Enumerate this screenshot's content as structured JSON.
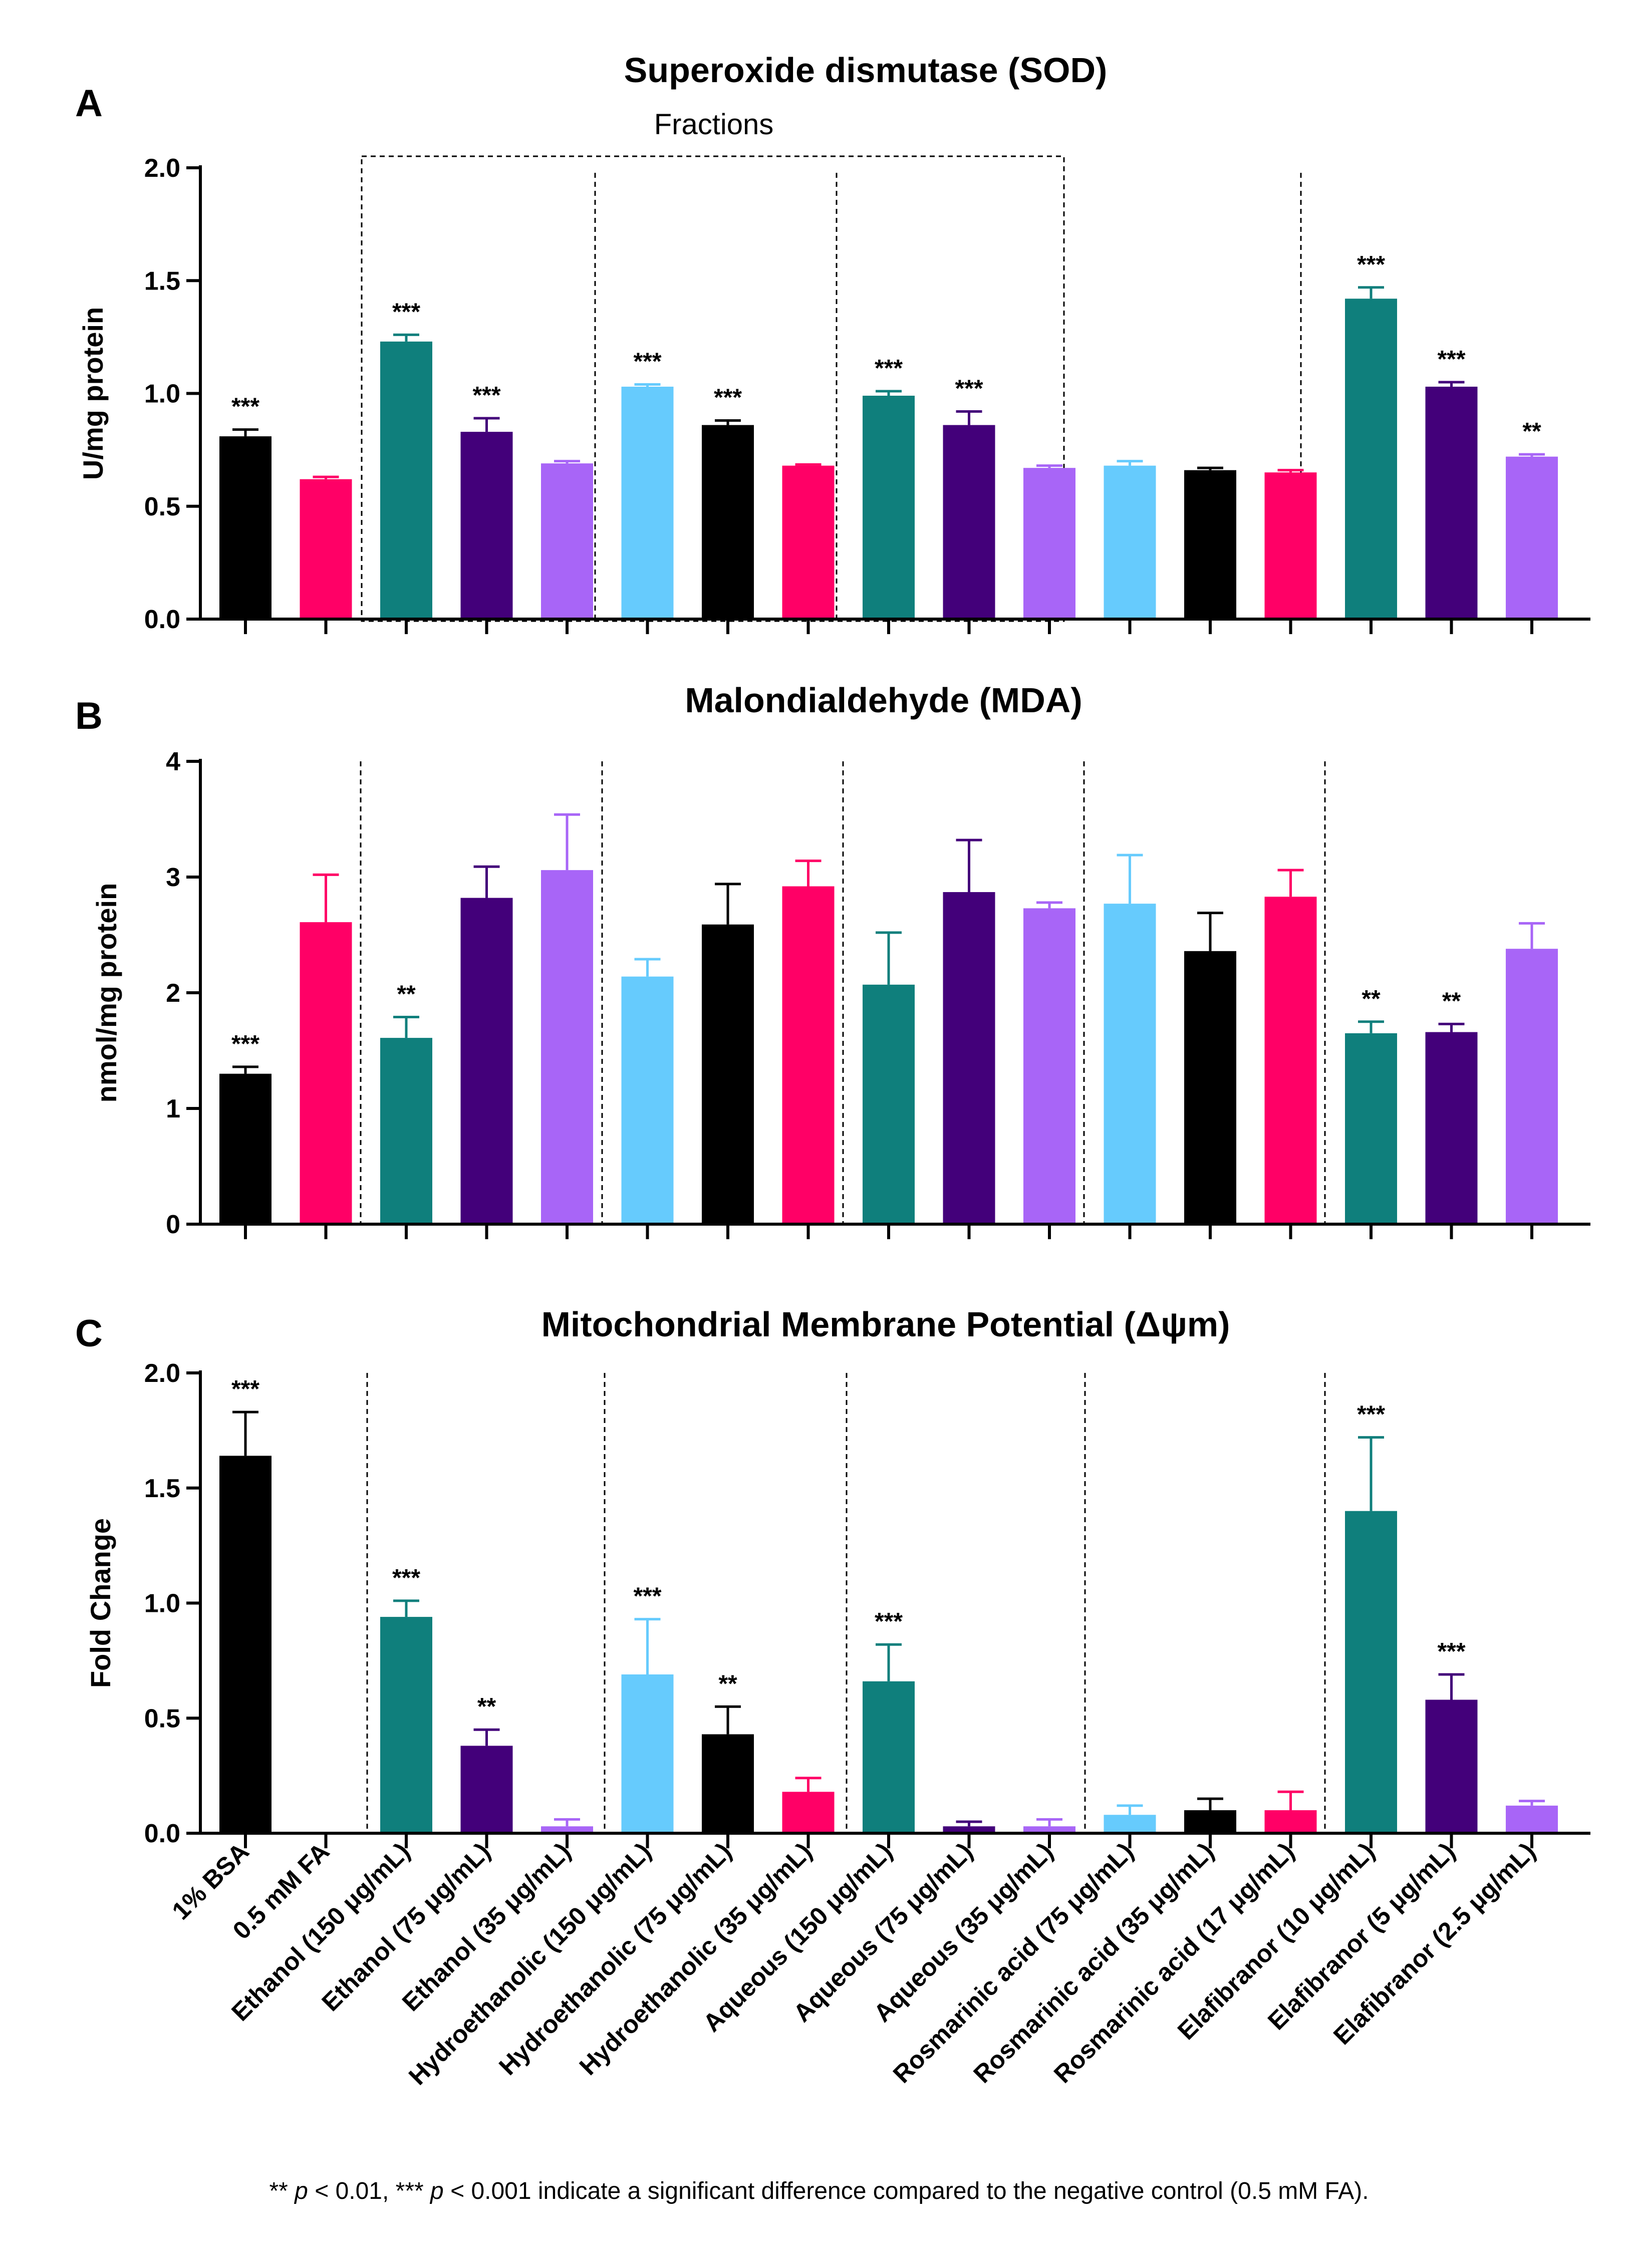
{
  "colors": {
    "black": "#000000",
    "pink": "#ff0066",
    "teal": "#0f7f7c",
    "purple": "#43007a",
    "lavender": "#a865f7",
    "sky": "#66cbfd"
  },
  "categories": [
    "1% BSA",
    "0.5 mM FA",
    "Ethanol (150 μg/mL)",
    "Ethanol (75 μg/mL)",
    "Ethanol (35 μg/mL)",
    "Hydroethanolic (150 μg/mL)",
    "Hydroethanolic (75 μg/mL)",
    "Hydroethanolic (35 μg/mL)",
    "Aqueous (150 μg/mL)",
    "Aqueous (75 μg/mL)",
    "Aqueous (35 μg/mL)",
    "Rosmarinic acid (75 μg/mL)",
    "Rosmarinic acid (35 μg/mL)",
    "Rosmarinic acid (17 μg/mL)",
    "Elafibranor (10 μg/mL)",
    "Elafibranor (5 μg/mL)",
    "Elafibranor (2.5 μg/mL)"
  ],
  "footnote": {
    "marks_01": "** ",
    "p1": "p",
    "text1": " < 0.01, *** ",
    "p2": "p",
    "text2": " < 0.001 indicate a significant difference compared to the negative control (0.5 mM FA)."
  },
  "chart_data": [
    {
      "panel": "A",
      "type": "bar",
      "title": "Superoxide dismutase (SOD)",
      "ylabel": "U/mg protein",
      "ylim": [
        0,
        2.0
      ],
      "yticks": [
        "0.0",
        "0.5",
        "1.0",
        "1.5",
        "2.0"
      ],
      "yvalues": [
        0,
        0.5,
        1.0,
        1.5,
        2.0
      ],
      "bracket_label": "Fractions",
      "values": [
        0.81,
        0.62,
        1.23,
        0.83,
        0.69,
        1.03,
        0.86,
        0.68,
        0.99,
        0.86,
        0.67,
        0.68,
        0.66,
        0.65,
        1.42,
        1.03,
        0.72
      ],
      "errors": [
        0.03,
        0.01,
        0.03,
        0.06,
        0.01,
        0.01,
        0.02,
        0.005,
        0.02,
        0.06,
        0.01,
        0.02,
        0.01,
        0.01,
        0.05,
        0.02,
        0.01
      ],
      "significance": [
        "***",
        "",
        "***",
        "***",
        "",
        "***",
        "***",
        "",
        "***",
        "***",
        "",
        "",
        "",
        "",
        "***",
        "***",
        "**"
      ],
      "bar_colors": [
        "black",
        "pink",
        "teal",
        "purple",
        "lavender",
        "sky",
        "black",
        "pink",
        "teal",
        "purple",
        "lavender",
        "sky",
        "black",
        "pink",
        "teal",
        "purple",
        "lavender"
      ]
    },
    {
      "panel": "B",
      "type": "bar",
      "title": "Malondialdehyde (MDA)",
      "ylabel": "nmol/mg protein",
      "ylim": [
        0,
        4
      ],
      "yticks": [
        "0",
        "1",
        "2",
        "3",
        "4"
      ],
      "yvalues": [
        0,
        1,
        2,
        3,
        4
      ],
      "values": [
        1.3,
        2.61,
        1.61,
        2.82,
        3.06,
        2.14,
        2.59,
        2.92,
        2.07,
        2.87,
        2.73,
        2.77,
        2.36,
        2.83,
        1.65,
        1.66,
        2.38
      ],
      "errors": [
        0.06,
        0.41,
        0.18,
        0.27,
        0.48,
        0.15,
        0.35,
        0.22,
        0.45,
        0.45,
        0.05,
        0.42,
        0.33,
        0.23,
        0.1,
        0.07,
        0.22
      ],
      "significance": [
        "***",
        "",
        "**",
        "",
        "",
        "",
        "",
        "",
        "",
        "",
        "",
        "",
        "",
        "",
        "**",
        "**",
        ""
      ],
      "bar_colors": [
        "black",
        "pink",
        "teal",
        "purple",
        "lavender",
        "sky",
        "black",
        "pink",
        "teal",
        "purple",
        "lavender",
        "sky",
        "black",
        "pink",
        "teal",
        "purple",
        "lavender"
      ]
    },
    {
      "panel": "C",
      "type": "bar",
      "title": "Mitochondrial Membrane Potential (Δψm)",
      "ylabel": "Fold Change",
      "ylim": [
        0,
        2.0
      ],
      "yticks": [
        "0.0",
        "0.5",
        "1.0",
        "1.5",
        "2.0"
      ],
      "yvalues": [
        0,
        0.5,
        1.0,
        1.5,
        2.0
      ],
      "values": [
        1.64,
        0.0,
        0.94,
        0.38,
        0.03,
        0.69,
        0.43,
        0.18,
        0.66,
        0.03,
        0.03,
        0.08,
        0.1,
        0.1,
        1.4,
        0.58,
        0.12
      ],
      "errors": [
        0.19,
        0.0,
        0.07,
        0.07,
        0.03,
        0.24,
        0.12,
        0.06,
        0.16,
        0.02,
        0.03,
        0.04,
        0.05,
        0.08,
        0.32,
        0.11,
        0.02
      ],
      "significance": [
        "***",
        "",
        "***",
        "**",
        "",
        "***",
        "**",
        "",
        "***",
        "",
        "",
        "",
        "",
        "",
        "***",
        "***",
        ""
      ],
      "bar_colors": [
        "black",
        "pink",
        "teal",
        "purple",
        "lavender",
        "sky",
        "black",
        "pink",
        "teal",
        "purple",
        "lavender",
        "sky",
        "black",
        "pink",
        "teal",
        "purple",
        "lavender"
      ]
    }
  ]
}
